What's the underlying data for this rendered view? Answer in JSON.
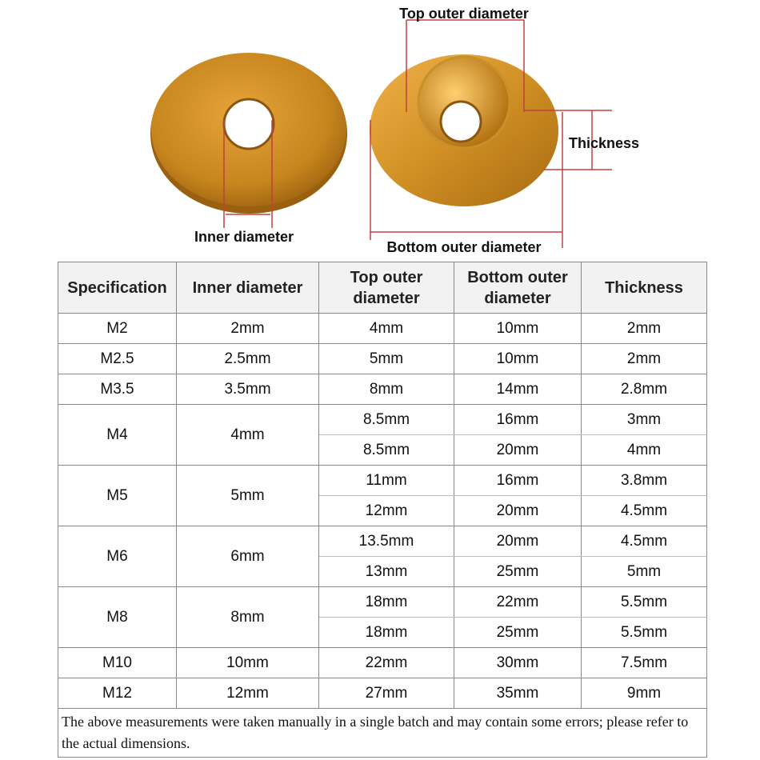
{
  "diagram": {
    "top_outer_label": "Top outer diameter",
    "inner_label": "Inner diameter",
    "thickness_label": "Thickness",
    "bottom_outer_label": "Bottom outer diameter"
  },
  "table": {
    "headers": [
      "Specification",
      "Inner diameter",
      "Top outer diameter",
      "Bottom outer diameter",
      "Thickness"
    ],
    "rows": [
      {
        "spec": "M2",
        "inner": "2mm",
        "sizes": [
          [
            "4mm",
            "10mm",
            "2mm"
          ]
        ]
      },
      {
        "spec": "M2.5",
        "inner": "2.5mm",
        "sizes": [
          [
            "5mm",
            "10mm",
            "2mm"
          ]
        ]
      },
      {
        "spec": "M3.5",
        "inner": "3.5mm",
        "sizes": [
          [
            "8mm",
            "14mm",
            "2.8mm"
          ]
        ]
      },
      {
        "spec": "M4",
        "inner": "4mm",
        "sizes": [
          [
            "8.5mm",
            "16mm",
            "3mm"
          ],
          [
            "8.5mm",
            "20mm",
            "4mm"
          ]
        ]
      },
      {
        "spec": "M5",
        "inner": "5mm",
        "sizes": [
          [
            "11mm",
            "16mm",
            "3.8mm"
          ],
          [
            "12mm",
            "20mm",
            "4.5mm"
          ]
        ]
      },
      {
        "spec": "M6",
        "inner": "6mm",
        "sizes": [
          [
            "13.5mm",
            "20mm",
            "4.5mm"
          ],
          [
            "13mm",
            "25mm",
            "5mm"
          ]
        ]
      },
      {
        "spec": "M8",
        "inner": "8mm",
        "sizes": [
          [
            "18mm",
            "22mm",
            "5.5mm"
          ],
          [
            "18mm",
            "25mm",
            "5.5mm"
          ]
        ]
      },
      {
        "spec": "M10",
        "inner": "10mm",
        "sizes": [
          [
            "22mm",
            "30mm",
            "7.5mm"
          ]
        ]
      },
      {
        "spec": "M12",
        "inner": "12mm",
        "sizes": [
          [
            "27mm",
            "35mm",
            "9mm"
          ]
        ]
      }
    ],
    "note": "The above measurements were taken manually in a single batch and may contain some errors; please refer to the actual dimensions."
  }
}
